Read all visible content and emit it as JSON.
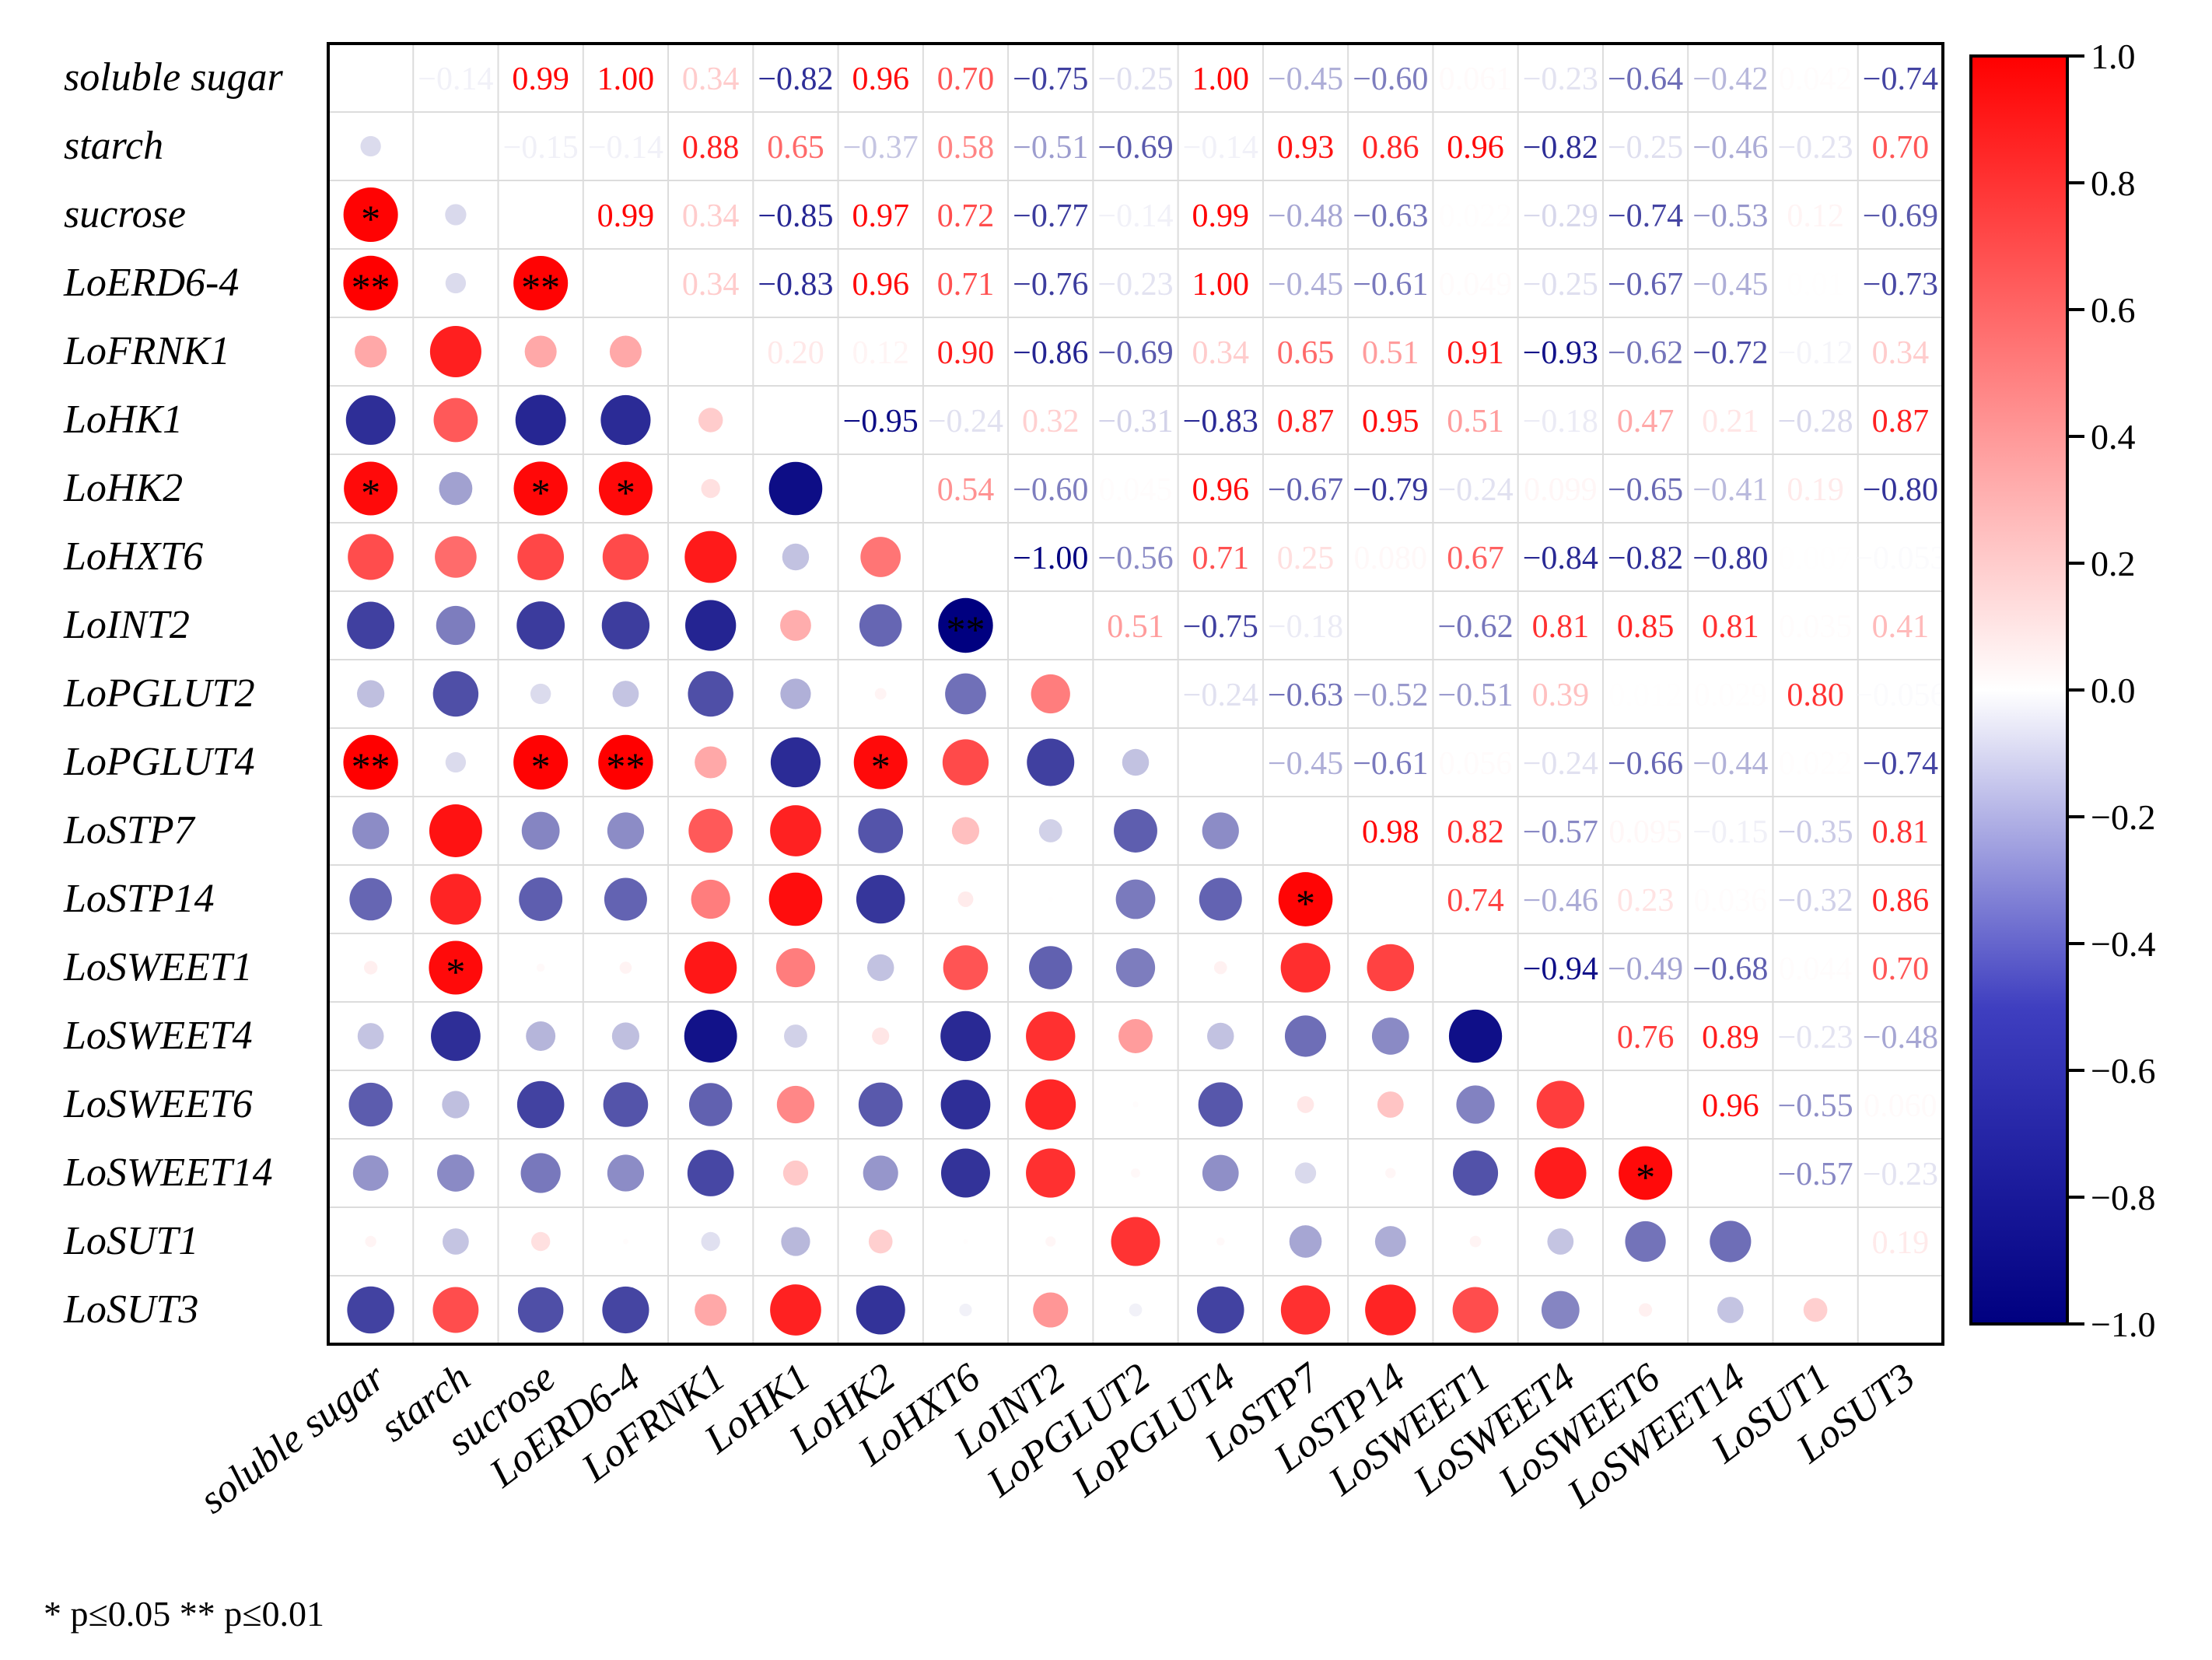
{
  "chart_data": {
    "type": "heatmap",
    "subtype": "correlation-matrix",
    "labels": [
      "soluble sugar",
      "starch",
      "sucrose",
      "LoERD6-4",
      "LoFRNK1",
      "LoHK1",
      "LoHK2",
      "LoHXT6",
      "LoINT2",
      "LoPGLUT2",
      "LoPGLUT4",
      "LoSTP7",
      "LoSTP14",
      "LoSWEET1",
      "LoSWEET4",
      "LoSWEET6",
      "LoSWEET14",
      "LoSUT1",
      "LoSUT3"
    ],
    "upper_label_text": [
      [
        null,
        "-0.14",
        "0.99",
        "1.00",
        "0.34",
        "-0.82",
        "0.96",
        "0.70",
        "-0.75",
        "-0.25",
        "1.00",
        "-0.45",
        "-0.60",
        "0.061",
        "-0.23",
        "-0.64",
        "-0.42",
        "0.042",
        "-0.74"
      ],
      [
        null,
        null,
        "-0.15",
        "-0.14",
        "0.88",
        "0.65",
        "-0.37",
        "0.58",
        "-0.51",
        "-0.69",
        "-0.14",
        "0.93",
        "0.86",
        "0.96",
        "-0.82",
        "-0.25",
        "-0.46",
        "-0.23",
        "0.70"
      ],
      [
        null,
        null,
        null,
        "0.99",
        "0.34",
        "-0.85",
        "0.97",
        "0.72",
        "-0.77",
        "-0.14",
        "0.99",
        "-0.48",
        "-0.63",
        "0.022",
        "-0.29",
        "-0.74",
        "-0.53",
        "0.12",
        "-0.69"
      ],
      [
        null,
        null,
        null,
        null,
        "0.34",
        "-0.83",
        "0.96",
        "0.71",
        "-0.76",
        "-0.23",
        "1.00",
        "-0.45",
        "-0.61",
        "0.049",
        "-0.25",
        "-0.67",
        "-0.45",
        "0.01",
        "-0.73"
      ],
      [
        null,
        null,
        null,
        null,
        null,
        "0.20",
        "0.12",
        "0.90",
        "-0.86",
        "-0.69",
        "0.34",
        "0.65",
        "0.51",
        "0.91",
        "-0.93",
        "-0.62",
        "-0.72",
        "-0.12",
        "0.34"
      ],
      [
        null,
        null,
        null,
        null,
        null,
        null,
        "-0.95",
        "-0.24",
        "0.32",
        "-0.31",
        "-0.83",
        "0.87",
        "0.95",
        "0.51",
        "-0.18",
        "0.47",
        "0.21",
        "-0.28",
        "0.87"
      ],
      [
        null,
        null,
        null,
        null,
        null,
        null,
        null,
        "0.54",
        "-0.60",
        "0.045",
        "0.96",
        "-0.67",
        "-0.79",
        "-0.24",
        "0.099",
        "-0.65",
        "-0.41",
        "0.19",
        "-0.80"
      ],
      [
        null,
        null,
        null,
        null,
        null,
        null,
        null,
        null,
        "-1.00",
        "-0.56",
        "0.71",
        "0.25",
        "0.080",
        "0.67",
        "-0.84",
        "-0.82",
        "-0.80",
        "0.007",
        "-0.053"
      ],
      [
        null,
        null,
        null,
        null,
        null,
        null,
        null,
        null,
        null,
        "0.51",
        "-0.75",
        "-0.18",
        "0.002",
        "-0.62",
        "0.81",
        "0.85",
        "0.81",
        "0.035",
        "0.41"
      ],
      [
        null,
        null,
        null,
        null,
        null,
        null,
        null,
        null,
        null,
        null,
        "-0.24",
        "-0.63",
        "-0.52",
        "-0.51",
        "0.39",
        "0.012",
        "0.029",
        "0.80",
        "-0.056"
      ],
      [
        null,
        null,
        null,
        null,
        null,
        null,
        null,
        null,
        null,
        null,
        null,
        "-0.45",
        "-0.61",
        "0.056",
        "-0.24",
        "-0.66",
        "-0.44",
        "0.022",
        "-0.74"
      ],
      [
        null,
        null,
        null,
        null,
        null,
        null,
        null,
        null,
        null,
        null,
        null,
        null,
        "0.98",
        "0.82",
        "-0.57",
        "0.095",
        "-0.15",
        "-0.35",
        "0.81"
      ],
      [
        null,
        null,
        null,
        null,
        null,
        null,
        null,
        null,
        null,
        null,
        null,
        null,
        null,
        "0.74",
        "-0.46",
        "0.23",
        "0.036",
        "-0.32",
        "0.86"
      ],
      [
        null,
        null,
        null,
        null,
        null,
        null,
        null,
        null,
        null,
        null,
        null,
        null,
        null,
        null,
        "-0.94",
        "-0.49",
        "-0.68",
        "0.044",
        "0.70"
      ],
      [
        null,
        null,
        null,
        null,
        null,
        null,
        null,
        null,
        null,
        null,
        null,
        null,
        null,
        null,
        null,
        "0.76",
        "0.89",
        "-0.23",
        "-0.48"
      ],
      [
        null,
        null,
        null,
        null,
        null,
        null,
        null,
        null,
        null,
        null,
        null,
        null,
        null,
        null,
        null,
        null,
        "0.96",
        "-0.55",
        "0.060"
      ],
      [
        null,
        null,
        null,
        null,
        null,
        null,
        null,
        null,
        null,
        null,
        null,
        null,
        null,
        null,
        null,
        null,
        null,
        "-0.57",
        "-0.23"
      ],
      [
        null,
        null,
        null,
        null,
        null,
        null,
        null,
        null,
        null,
        null,
        null,
        null,
        null,
        null,
        null,
        null,
        null,
        null,
        "0.19"
      ],
      [
        null,
        null,
        null,
        null,
        null,
        null,
        null,
        null,
        null,
        null,
        null,
        null,
        null,
        null,
        null,
        null,
        null,
        null,
        null
      ]
    ],
    "significance": [
      {
        "row": "sucrose",
        "col": "soluble sugar",
        "mark": "*"
      },
      {
        "row": "LoERD6-4",
        "col": "soluble sugar",
        "mark": "**"
      },
      {
        "row": "LoERD6-4",
        "col": "sucrose",
        "mark": "**"
      },
      {
        "row": "LoHK2",
        "col": "soluble sugar",
        "mark": "*"
      },
      {
        "row": "LoHK2",
        "col": "sucrose",
        "mark": "*"
      },
      {
        "row": "LoHK2",
        "col": "LoERD6-4",
        "mark": "*"
      },
      {
        "row": "LoINT2",
        "col": "LoHXT6",
        "mark": "**"
      },
      {
        "row": "LoPGLUT4",
        "col": "soluble sugar",
        "mark": "**"
      },
      {
        "row": "LoPGLUT4",
        "col": "sucrose",
        "mark": "*"
      },
      {
        "row": "LoPGLUT4",
        "col": "LoERD6-4",
        "mark": "**"
      },
      {
        "row": "LoPGLUT4",
        "col": "LoHK2",
        "mark": "*"
      },
      {
        "row": "LoSTP14",
        "col": "LoSTP7",
        "mark": "*"
      },
      {
        "row": "LoSWEET1",
        "col": "starch",
        "mark": "*"
      },
      {
        "row": "LoSWEET14",
        "col": "LoSWEET6",
        "mark": "*"
      }
    ],
    "colorbar": {
      "min": -1.0,
      "max": 1.0,
      "ticks": [
        "1.0",
        "0.8",
        "0.6",
        "0.4",
        "0.2",
        "0.0",
        "−0.2",
        "−0.4",
        "−0.6",
        "−0.8",
        "−1.0"
      ],
      "stops": [
        "#000080",
        "#ffffff",
        "#ff0000"
      ]
    },
    "footnote": "* p≤0.05   ** p≤0.01",
    "lower_triangle": "circles sized and colored by correlation value",
    "upper_triangle": "numeric correlation values colored by value"
  }
}
